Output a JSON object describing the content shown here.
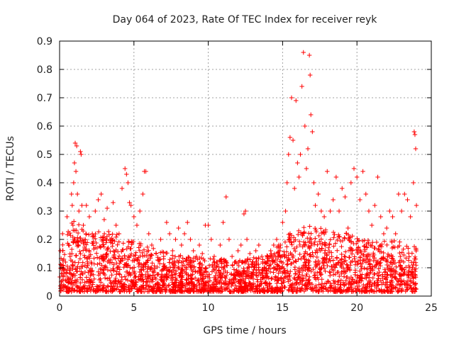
{
  "chart_data": {
    "type": "scatter",
    "title": "Day 064 of 2023, Rate Of TEC Index for receiver reyk",
    "xlabel": "GPS time / hours",
    "ylabel": "ROTI / TECUs",
    "xlim": [
      0,
      25
    ],
    "ylim": [
      0,
      0.9
    ],
    "x_ticks": [
      "0",
      "5",
      "10",
      "15",
      "20",
      "25"
    ],
    "y_ticks": [
      "0",
      "0.1",
      "0.2",
      "0.3",
      "0.4",
      "0.5",
      "0.6",
      "0.7",
      "0.8",
      "0.9"
    ],
    "grid": true,
    "legend": "none",
    "marker": "+",
    "color": "#ff0000",
    "series": [
      {
        "points": [
          [
            0.05,
            0.16
          ],
          [
            0.1,
            0.05
          ],
          [
            0.2,
            0.22
          ],
          [
            0.3,
            0.08
          ],
          [
            0.4,
            0.12
          ],
          [
            0.5,
            0.28
          ],
          [
            0.6,
            0.18
          ],
          [
            0.7,
            0.1
          ],
          [
            0.8,
            0.36
          ],
          [
            0.85,
            0.32
          ],
          [
            0.9,
            0.25
          ],
          [
            0.95,
            0.4
          ],
          [
            1.0,
            0.47
          ],
          [
            1.05,
            0.54
          ],
          [
            1.1,
            0.44
          ],
          [
            1.15,
            0.53
          ],
          [
            1.2,
            0.36
          ],
          [
            1.3,
            0.3
          ],
          [
            1.4,
            0.51
          ],
          [
            1.45,
            0.5
          ],
          [
            1.5,
            0.32
          ],
          [
            1.6,
            0.25
          ],
          [
            1.8,
            0.32
          ],
          [
            2.0,
            0.28
          ],
          [
            2.2,
            0.22
          ],
          [
            2.4,
            0.3
          ],
          [
            2.6,
            0.34
          ],
          [
            2.8,
            0.36
          ],
          [
            3.0,
            0.27
          ],
          [
            3.2,
            0.31
          ],
          [
            3.4,
            0.2
          ],
          [
            3.6,
            0.33
          ],
          [
            3.8,
            0.25
          ],
          [
            4.0,
            0.22
          ],
          [
            4.2,
            0.38
          ],
          [
            4.4,
            0.45
          ],
          [
            4.5,
            0.43
          ],
          [
            4.6,
            0.4
          ],
          [
            4.7,
            0.33
          ],
          [
            4.8,
            0.32
          ],
          [
            5.0,
            0.28
          ],
          [
            5.2,
            0.25
          ],
          [
            5.4,
            0.3
          ],
          [
            5.6,
            0.36
          ],
          [
            5.7,
            0.44
          ],
          [
            5.8,
            0.44
          ],
          [
            6.0,
            0.22
          ],
          [
            6.2,
            0.18
          ],
          [
            6.5,
            0.15
          ],
          [
            6.8,
            0.2
          ],
          [
            7.0,
            0.14
          ],
          [
            7.2,
            0.26
          ],
          [
            7.4,
            0.22
          ],
          [
            7.6,
            0.16
          ],
          [
            7.8,
            0.2
          ],
          [
            8.0,
            0.24
          ],
          [
            8.2,
            0.18
          ],
          [
            8.4,
            0.22
          ],
          [
            8.6,
            0.26
          ],
          [
            8.8,
            0.2
          ],
          [
            9.0,
            0.16
          ],
          [
            9.2,
            0.14
          ],
          [
            9.4,
            0.18
          ],
          [
            9.6,
            0.15
          ],
          [
            9.8,
            0.25
          ],
          [
            10.0,
            0.25
          ],
          [
            10.2,
            0.2
          ],
          [
            10.4,
            0.14
          ],
          [
            10.6,
            0.12
          ],
          [
            10.8,
            0.18
          ],
          [
            11.0,
            0.26
          ],
          [
            11.2,
            0.35
          ],
          [
            11.4,
            0.2
          ],
          [
            11.6,
            0.14
          ],
          [
            11.8,
            0.12
          ],
          [
            12.0,
            0.16
          ],
          [
            12.2,
            0.18
          ],
          [
            12.4,
            0.29
          ],
          [
            12.5,
            0.3
          ],
          [
            12.6,
            0.2
          ],
          [
            12.8,
            0.15
          ],
          [
            13.0,
            0.12
          ],
          [
            13.2,
            0.16
          ],
          [
            13.4,
            0.18
          ],
          [
            13.6,
            0.14
          ],
          [
            13.8,
            0.12
          ],
          [
            14.0,
            0.14
          ],
          [
            14.2,
            0.16
          ],
          [
            14.4,
            0.18
          ],
          [
            14.6,
            0.2
          ],
          [
            14.8,
            0.16
          ],
          [
            15.0,
            0.26
          ],
          [
            15.2,
            0.3
          ],
          [
            15.3,
            0.4
          ],
          [
            15.4,
            0.5
          ],
          [
            15.5,
            0.56
          ],
          [
            15.6,
            0.7
          ],
          [
            15.7,
            0.55
          ],
          [
            15.8,
            0.38
          ],
          [
            15.9,
            0.69
          ],
          [
            16.0,
            0.47
          ],
          [
            16.1,
            0.42
          ],
          [
            16.2,
            0.5
          ],
          [
            16.3,
            0.74
          ],
          [
            16.4,
            0.86
          ],
          [
            16.5,
            0.6
          ],
          [
            16.6,
            0.45
          ],
          [
            16.7,
            0.52
          ],
          [
            16.8,
            0.85
          ],
          [
            16.85,
            0.78
          ],
          [
            16.9,
            0.64
          ],
          [
            17.0,
            0.58
          ],
          [
            17.1,
            0.4
          ],
          [
            17.2,
            0.32
          ],
          [
            17.4,
            0.36
          ],
          [
            17.6,
            0.3
          ],
          [
            17.8,
            0.28
          ],
          [
            18.0,
            0.44
          ],
          [
            18.2,
            0.3
          ],
          [
            18.4,
            0.34
          ],
          [
            18.6,
            0.42
          ],
          [
            18.8,
            0.3
          ],
          [
            19.0,
            0.38
          ],
          [
            19.2,
            0.35
          ],
          [
            19.4,
            0.24
          ],
          [
            19.6,
            0.4
          ],
          [
            19.8,
            0.45
          ],
          [
            20.0,
            0.42
          ],
          [
            20.2,
            0.34
          ],
          [
            20.4,
            0.44
          ],
          [
            20.6,
            0.36
          ],
          [
            20.8,
            0.3
          ],
          [
            21.0,
            0.25
          ],
          [
            21.2,
            0.32
          ],
          [
            21.4,
            0.42
          ],
          [
            21.6,
            0.28
          ],
          [
            21.8,
            0.22
          ],
          [
            22.0,
            0.24
          ],
          [
            22.2,
            0.3
          ],
          [
            22.4,
            0.28
          ],
          [
            22.6,
            0.22
          ],
          [
            22.8,
            0.36
          ],
          [
            23.0,
            0.3
          ],
          [
            23.2,
            0.36
          ],
          [
            23.4,
            0.34
          ],
          [
            23.6,
            0.28
          ],
          [
            23.8,
            0.4
          ],
          [
            23.85,
            0.58
          ],
          [
            23.9,
            0.57
          ],
          [
            23.95,
            0.52
          ],
          [
            24.0,
            0.32
          ]
        ]
      }
    ],
    "background": {
      "description_free": true,
      "profile": [
        [
          0,
          0.16
        ],
        [
          1,
          0.26
        ],
        [
          2,
          0.2
        ],
        [
          3,
          0.22
        ],
        [
          4,
          0.2
        ],
        [
          5,
          0.18
        ],
        [
          6,
          0.16
        ],
        [
          7,
          0.14
        ],
        [
          8,
          0.13
        ],
        [
          9,
          0.12
        ],
        [
          10,
          0.12
        ],
        [
          11,
          0.12
        ],
        [
          12,
          0.11
        ],
        [
          13,
          0.12
        ],
        [
          14,
          0.13
        ],
        [
          15,
          0.18
        ],
        [
          16,
          0.24
        ],
        [
          17,
          0.23
        ],
        [
          18,
          0.22
        ],
        [
          19,
          0.21
        ],
        [
          20,
          0.2
        ],
        [
          21,
          0.18
        ],
        [
          22,
          0.18
        ],
        [
          23,
          0.18
        ],
        [
          24,
          0.16
        ]
      ]
    }
  }
}
